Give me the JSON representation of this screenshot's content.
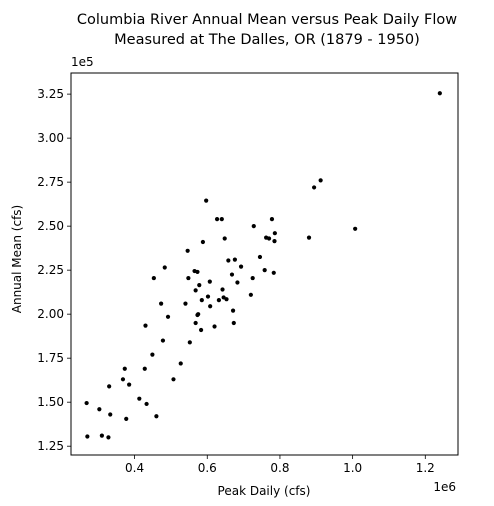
{
  "chart_data": {
    "type": "scatter",
    "title_line1": "Columbia River Annual Mean versus Peak Daily Flow",
    "title_line2": "Measured at The Dalles, OR (1879 - 1950)",
    "xlabel": "Peak Daily (cfs)",
    "ylabel": "Annual Mean (cfs)",
    "x_offset_label": "1e6",
    "y_offset_label": "1e5",
    "xlim": [
      0.225,
      1.29
    ],
    "ylim": [
      1.2,
      3.37
    ],
    "x_ticks": [
      {
        "value": 0.4,
        "label": "0.4"
      },
      {
        "value": 0.6,
        "label": "0.6"
      },
      {
        "value": 0.8,
        "label": "0.8"
      },
      {
        "value": 1.0,
        "label": "1.0"
      },
      {
        "value": 1.2,
        "label": "1.2"
      }
    ],
    "y_ticks": [
      {
        "value": 1.25,
        "label": "1.25"
      },
      {
        "value": 1.5,
        "label": "1.50"
      },
      {
        "value": 1.75,
        "label": "1.75"
      },
      {
        "value": 2.0,
        "label": "2.00"
      },
      {
        "value": 2.25,
        "label": "2.25"
      },
      {
        "value": 2.5,
        "label": "2.50"
      },
      {
        "value": 2.75,
        "label": "2.75"
      },
      {
        "value": 3.0,
        "label": "3.00"
      },
      {
        "value": 3.25,
        "label": "3.25"
      }
    ],
    "grid": false,
    "marker_color": "#000000",
    "points": [
      [
        0.268,
        1.495
      ],
      [
        0.27,
        1.305
      ],
      [
        0.303,
        1.46
      ],
      [
        0.31,
        1.31
      ],
      [
        0.328,
        1.3
      ],
      [
        0.33,
        1.59
      ],
      [
        0.333,
        1.43
      ],
      [
        0.368,
        1.63
      ],
      [
        0.373,
        1.69
      ],
      [
        0.377,
        1.405
      ],
      [
        0.385,
        1.6
      ],
      [
        0.413,
        1.52
      ],
      [
        0.428,
        1.69
      ],
      [
        0.43,
        1.935
      ],
      [
        0.433,
        1.49
      ],
      [
        0.449,
        1.77
      ],
      [
        0.453,
        2.205
      ],
      [
        0.46,
        1.42
      ],
      [
        0.473,
        2.06
      ],
      [
        0.478,
        1.85
      ],
      [
        0.483,
        2.265
      ],
      [
        0.492,
        1.985
      ],
      [
        0.507,
        1.63
      ],
      [
        0.527,
        1.72
      ],
      [
        0.54,
        2.06
      ],
      [
        0.546,
        2.36
      ],
      [
        0.548,
        2.205
      ],
      [
        0.552,
        1.84
      ],
      [
        0.565,
        2.245
      ],
      [
        0.568,
        2.135
      ],
      [
        0.568,
        1.95
      ],
      [
        0.573,
        1.995
      ],
      [
        0.573,
        2.24
      ],
      [
        0.575,
        2.0
      ],
      [
        0.578,
        2.165
      ],
      [
        0.583,
        1.91
      ],
      [
        0.585,
        2.08
      ],
      [
        0.588,
        2.41
      ],
      [
        0.597,
        2.645
      ],
      [
        0.602,
        2.1
      ],
      [
        0.607,
        2.185
      ],
      [
        0.608,
        2.045
      ],
      [
        0.62,
        1.93
      ],
      [
        0.627,
        2.54
      ],
      [
        0.632,
        2.08
      ],
      [
        0.64,
        2.54
      ],
      [
        0.642,
        2.14
      ],
      [
        0.645,
        2.095
      ],
      [
        0.648,
        2.43
      ],
      [
        0.653,
        2.085
      ],
      [
        0.658,
        2.305
      ],
      [
        0.668,
        2.225
      ],
      [
        0.671,
        2.02
      ],
      [
        0.673,
        1.95
      ],
      [
        0.676,
        2.31
      ],
      [
        0.683,
        2.18
      ],
      [
        0.693,
        2.27
      ],
      [
        0.72,
        2.11
      ],
      [
        0.725,
        2.205
      ],
      [
        0.728,
        2.5
      ],
      [
        0.745,
        2.325
      ],
      [
        0.758,
        2.25
      ],
      [
        0.762,
        2.435
      ],
      [
        0.77,
        2.43
      ],
      [
        0.778,
        2.54
      ],
      [
        0.783,
        2.235
      ],
      [
        0.785,
        2.415
      ],
      [
        0.786,
        2.46
      ],
      [
        0.88,
        2.435
      ],
      [
        0.894,
        2.72
      ],
      [
        0.912,
        2.76
      ],
      [
        1.007,
        2.485
      ],
      [
        1.24,
        3.255
      ]
    ]
  }
}
